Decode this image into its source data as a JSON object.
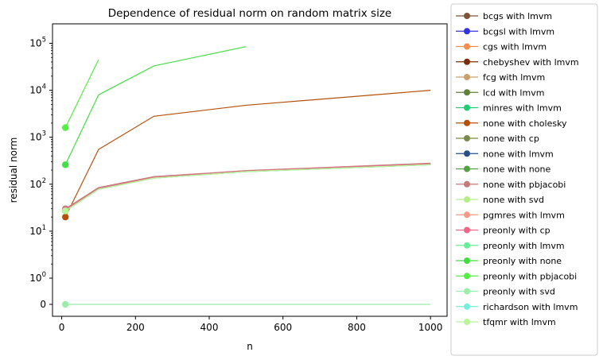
{
  "chart_data": {
    "type": "line",
    "title": "Dependence of residual norm on random matrix size",
    "xlabel": "n",
    "ylabel": "residual norm",
    "xlim": [
      -25,
      1045
    ],
    "xticks": [
      0,
      200,
      400,
      600,
      800,
      1000
    ],
    "yscale": "symlog",
    "ytick_labels": [
      "0",
      "10^0",
      "10^1",
      "10^2",
      "10^3",
      "10^4",
      "10^5"
    ],
    "grid": false,
    "legend_position": "outside-right",
    "series": [
      {
        "name": "bcgs with lmvm",
        "color": "#7f5539",
        "x": [
          10,
          100,
          250,
          500,
          1000
        ],
        "y": [
          28,
          80,
          140,
          190,
          270
        ]
      },
      {
        "name": "bcgsl with lmvm",
        "color": "#3333dd",
        "x": [
          10,
          100,
          250,
          500,
          1000
        ],
        "y": [
          28,
          80,
          140,
          190,
          270
        ]
      },
      {
        "name": "cgs with lmvm",
        "color": "#f28e4b",
        "x": [
          10,
          100,
          250,
          500,
          1000
        ],
        "y": [
          28,
          80,
          140,
          190,
          270
        ]
      },
      {
        "name": "chebyshev with lmvm",
        "color": "#7a2e0b",
        "x": [
          10,
          100,
          250,
          500,
          1000
        ],
        "y": [
          28,
          80,
          140,
          190,
          270
        ]
      },
      {
        "name": "fcg with lmvm",
        "color": "#c9a06a",
        "x": [
          10,
          100,
          250,
          500,
          1000
        ],
        "y": [
          28,
          80,
          140,
          190,
          270
        ]
      },
      {
        "name": "lcd with lmvm",
        "color": "#5f7f3a",
        "x": [
          10,
          100,
          250,
          500,
          1000
        ],
        "y": [
          28,
          80,
          140,
          190,
          270
        ]
      },
      {
        "name": "minres with lmvm",
        "color": "#22cc77",
        "x": [
          10,
          100,
          250,
          500,
          1000
        ],
        "y": [
          27,
          78,
          135,
          185,
          260
        ]
      },
      {
        "name": "none with cholesky",
        "color": "#b5500b",
        "x": [
          10,
          100,
          250,
          500,
          1000
        ],
        "y": [
          20,
          550,
          2800,
          4800,
          10000
        ]
      },
      {
        "name": "none with cp",
        "color": "#7a8a4a",
        "x": [
          10,
          100,
          250,
          500,
          1000
        ],
        "y": [
          28,
          80,
          140,
          190,
          270
        ]
      },
      {
        "name": "none with lmvm",
        "color": "#2a4f88",
        "x": [
          10,
          100,
          250,
          500,
          1000
        ],
        "y": [
          28,
          80,
          140,
          190,
          270
        ]
      },
      {
        "name": "none with none",
        "color": "#55a044",
        "x": [
          10,
          100,
          250,
          500,
          1000
        ],
        "y": [
          28,
          80,
          140,
          190,
          270
        ]
      },
      {
        "name": "none with pbjacobi",
        "color": "#c87878",
        "x": [
          10,
          100,
          250,
          500,
          1000
        ],
        "y": [
          30,
          85,
          145,
          195,
          280
        ]
      },
      {
        "name": "none with svd",
        "color": "#b3ee88",
        "x": [
          10,
          100,
          250,
          500,
          1000
        ],
        "y": [
          27,
          78,
          135,
          185,
          260
        ]
      },
      {
        "name": "pgmres with lmvm",
        "color": "#f59a88",
        "x": [
          10,
          100,
          250,
          500,
          1000
        ],
        "y": [
          28,
          80,
          140,
          190,
          270
        ]
      },
      {
        "name": "preonly with cp",
        "color": "#ee6688",
        "x": [
          10,
          100,
          250,
          500,
          1000
        ],
        "y": [
          28,
          80,
          140,
          190,
          270
        ]
      },
      {
        "name": "preonly with lmvm",
        "color": "#66ee99",
        "x": [
          10,
          100,
          250,
          500,
          1000
        ],
        "y": [
          27,
          78,
          135,
          185,
          260
        ]
      },
      {
        "name": "preonly with none",
        "color": "#44dd44",
        "x": [
          10,
          100,
          250,
          500
        ],
        "y": [
          260,
          8000,
          33000,
          85000
        ]
      },
      {
        "name": "preonly with pbjacobi",
        "color": "#55ee44",
        "x": [
          10,
          100
        ],
        "y": [
          1600,
          45000
        ]
      },
      {
        "name": "preonly with svd",
        "color": "#99eeaa",
        "x": [
          10,
          100,
          250,
          500,
          1000
        ],
        "y": [
          0,
          0,
          0,
          0,
          0
        ]
      },
      {
        "name": "richardson with lmvm",
        "color": "#77eedd",
        "x": [
          10,
          100,
          250,
          500,
          1000
        ],
        "y": [
          27,
          78,
          135,
          185,
          260
        ]
      },
      {
        "name": "tfqmr with lmvm",
        "color": "#bbf599",
        "x": [
          10,
          100,
          250,
          500,
          1000
        ],
        "y": [
          27,
          78,
          135,
          185,
          260
        ]
      }
    ]
  }
}
